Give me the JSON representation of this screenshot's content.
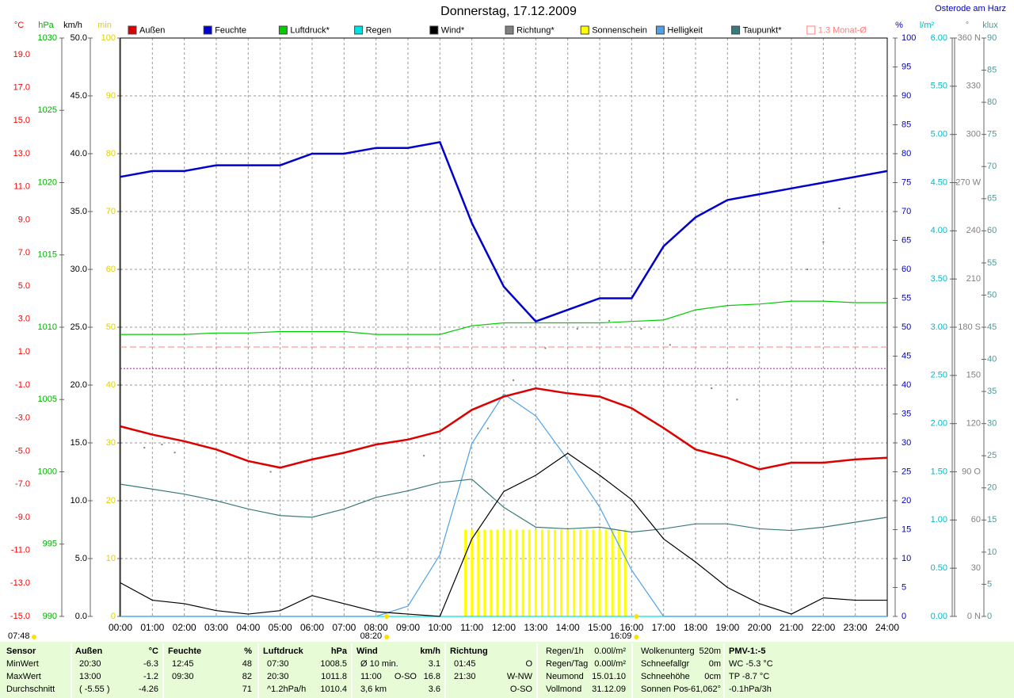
{
  "chart_data": {
    "type": "line",
    "title": "Donnerstag, 17.12.2009",
    "subtitle": "Osterode am Harz",
    "grid": true,
    "xlim": [
      0,
      24
    ],
    "xticks": [
      {
        "value": 0,
        "label": "00:00"
      },
      {
        "value": 1,
        "label": "01:00"
      },
      {
        "value": 2,
        "label": "02:00"
      },
      {
        "value": 3,
        "label": "03:00"
      },
      {
        "value": 4,
        "label": "04:00"
      },
      {
        "value": 5,
        "label": "05:00"
      },
      {
        "value": 6,
        "label": "06:00"
      },
      {
        "value": 7,
        "label": "07:00"
      },
      {
        "value": 8,
        "label": "08:00"
      },
      {
        "value": 9,
        "label": "09:00"
      },
      {
        "value": 10,
        "label": "10:00"
      },
      {
        "value": 11,
        "label": "11:00"
      },
      {
        "value": 12,
        "label": "12:00"
      },
      {
        "value": 13,
        "label": "13:00"
      },
      {
        "value": 14,
        "label": "14:00"
      },
      {
        "value": 15,
        "label": "15:00"
      },
      {
        "value": 16,
        "label": "16:00"
      },
      {
        "value": 17,
        "label": "17:00"
      },
      {
        "value": 18,
        "label": "18:00"
      },
      {
        "value": 19,
        "label": "19:00"
      },
      {
        "value": 20,
        "label": "20:00"
      },
      {
        "value": 21,
        "label": "21:00"
      },
      {
        "value": 22,
        "label": "22:00"
      },
      {
        "value": 23,
        "label": "23:00"
      },
      {
        "value": 24,
        "label": "24:00"
      }
    ],
    "axes": [
      {
        "label": "°C",
        "color": "#ff0000",
        "ylim": [
          -15,
          20
        ],
        "yticks": [
          {
            "value": -15,
            "label": "-15.0"
          },
          {
            "value": -13,
            "label": "-13.0"
          },
          {
            "value": -11,
            "label": "-11.0"
          },
          {
            "value": -9,
            "label": "-9.0"
          },
          {
            "value": -7,
            "label": "-7.0"
          },
          {
            "value": -5,
            "label": "-5.0"
          },
          {
            "value": -3,
            "label": "-3.0"
          },
          {
            "value": -1,
            "label": "-1.0"
          },
          {
            "value": 1,
            "label": "1.0"
          },
          {
            "value": 3,
            "label": "3.0"
          },
          {
            "value": 5,
            "label": "5.0"
          },
          {
            "value": 7,
            "label": "7.0"
          },
          {
            "value": 9,
            "label": "9.0"
          },
          {
            "value": 11,
            "label": "11.0"
          },
          {
            "value": 13,
            "label": "13.0"
          },
          {
            "value": 15,
            "label": "15.0"
          },
          {
            "value": 17,
            "label": "17.0"
          },
          {
            "value": 19,
            "label": "19.0"
          }
        ]
      },
      {
        "label": "hPa",
        "color": "#00b000",
        "ylim": [
          990,
          1030
        ],
        "yticks": [
          990,
          995,
          1000,
          1005,
          1010,
          1015,
          1020,
          1025,
          1030
        ]
      },
      {
        "label": "km/h",
        "color": "#000000",
        "ylim": [
          0,
          50
        ],
        "yticks": [
          {
            "value": 0,
            "label": "0.0"
          },
          {
            "value": 5,
            "label": "5.0"
          },
          {
            "value": 10,
            "label": "10.0"
          },
          {
            "value": 15,
            "label": "15.0"
          },
          {
            "value": 20,
            "label": "20.0"
          },
          {
            "value": 25,
            "label": "25.0"
          },
          {
            "value": 30,
            "label": "30.0"
          },
          {
            "value": 35,
            "label": "35.0"
          },
          {
            "value": 40,
            "label": "40.0"
          },
          {
            "value": 45,
            "label": "45.0"
          },
          {
            "value": 50,
            "label": "50.0"
          }
        ]
      },
      {
        "label": "min",
        "color": "#e0d000",
        "ylim": [
          0,
          100
        ],
        "yticks": [
          0,
          10,
          20,
          30,
          40,
          50,
          60,
          70,
          80,
          90,
          100
        ]
      },
      {
        "label": "%",
        "color": "#0000c0",
        "ylim": [
          0,
          100
        ],
        "yticks": [
          0,
          5,
          10,
          15,
          20,
          25,
          30,
          35,
          40,
          45,
          50,
          55,
          60,
          65,
          70,
          75,
          80,
          85,
          90,
          95,
          100
        ]
      },
      {
        "label": "l/m²",
        "color": "#00b8c8",
        "ylim": [
          0,
          6
        ],
        "yticks": [
          {
            "value": 0,
            "label": "0.00"
          },
          {
            "value": 0.5,
            "label": "0.50"
          },
          {
            "value": 1,
            "label": "1.00"
          },
          {
            "value": 1.5,
            "label": "1.50"
          },
          {
            "value": 2,
            "label": "2.00"
          },
          {
            "value": 2.5,
            "label": "2.50"
          },
          {
            "value": 3,
            "label": "3.00"
          },
          {
            "value": 3.5,
            "label": "3.50"
          },
          {
            "value": 4,
            "label": "4.00"
          },
          {
            "value": 4.5,
            "label": "4.50"
          },
          {
            "value": 5,
            "label": "5.00"
          },
          {
            "value": 5.5,
            "label": "5.50"
          },
          {
            "value": 6,
            "label": "6.00"
          }
        ]
      },
      {
        "label": "°",
        "color": "#808080",
        "ylim": [
          0,
          360
        ],
        "yticks": [
          {
            "value": 0,
            "label": "0 N"
          },
          30,
          60,
          {
            "value": 90,
            "label": "90 O"
          },
          120,
          150,
          {
            "value": 180,
            "label": "180 S"
          },
          210,
          240,
          {
            "value": 270,
            "label": "270 W"
          },
          300,
          330,
          {
            "value": 360,
            "label": "360 N"
          }
        ]
      },
      {
        "label": "klux",
        "color": "#4a9a9a",
        "ylim": [
          0,
          90
        ],
        "yticks": [
          0,
          5,
          10,
          15,
          20,
          25,
          30,
          35,
          40,
          45,
          50,
          55,
          60,
          65,
          70,
          75,
          80,
          85,
          90
        ]
      }
    ],
    "x": [
      0,
      1,
      2,
      3,
      4,
      5,
      6,
      7,
      8,
      9,
      10,
      11,
      12,
      13,
      14,
      15,
      16,
      17,
      18,
      19,
      20,
      21,
      22,
      23,
      24
    ],
    "series": [
      {
        "name": "Außen",
        "color": "#dd0000",
        "axis": 0,
        "values": [
          -3.5,
          -4.0,
          -4.4,
          -4.9,
          -5.6,
          -6.0,
          -5.5,
          -5.1,
          -4.6,
          -4.3,
          -3.8,
          -2.5,
          -1.7,
          -1.2,
          -1.5,
          -1.7,
          -2.4,
          -3.6,
          -4.9,
          -5.4,
          -6.1,
          -5.7,
          -5.7,
          -5.5,
          -5.4
        ]
      },
      {
        "name": "Feuchte",
        "color": "#0000cc",
        "axis": 4,
        "values": [
          76,
          77,
          77,
          78,
          78,
          78,
          80,
          80,
          81,
          81,
          82,
          68,
          57,
          51,
          53,
          55,
          55,
          64,
          69,
          72,
          73,
          74,
          75,
          76,
          77
        ]
      },
      {
        "name": "Luftdruck*",
        "color": "#00cc00",
        "axis": 1,
        "values": [
          1009.5,
          1009.5,
          1009.5,
          1009.6,
          1009.6,
          1009.7,
          1009.7,
          1009.7,
          1009.5,
          1009.5,
          1009.5,
          1010.1,
          1010.3,
          1010.3,
          1010.3,
          1010.3,
          1010.4,
          1010.5,
          1011.2,
          1011.5,
          1011.6,
          1011.8,
          1011.8,
          1011.7,
          1011.7
        ]
      },
      {
        "name": "Regen",
        "color": "#00e0e0",
        "axis": 5,
        "values": [
          0,
          0,
          0,
          0,
          0,
          0,
          0,
          0,
          0,
          0,
          0,
          0,
          0,
          0,
          0,
          0,
          0,
          0,
          0,
          0,
          0,
          0,
          0,
          0,
          0
        ]
      },
      {
        "name": "Wind*",
        "color": "#000000",
        "axis": 2,
        "values": [
          2.9,
          1.4,
          1.1,
          0.5,
          0.2,
          0.5,
          1.8,
          1.1,
          0.4,
          0.2,
          0,
          6.7,
          10.8,
          12.2,
          14.1,
          12.2,
          10.1,
          6.7,
          4.7,
          2.5,
          1.1,
          0.2,
          1.6,
          1.4,
          1.4
        ]
      },
      {
        "name": "Richtung*",
        "color": "#808080",
        "axis": 6,
        "type": "scatter",
        "x": [
          0.75,
          1.3,
          1.7,
          4.7,
          5.7,
          9.5,
          11.5,
          12.3,
          13.3,
          14.3,
          15.3,
          16.3,
          17.2,
          18.5,
          19.3,
          21.5,
          22.0,
          22.5
        ],
        "values": [
          105,
          107,
          102,
          90,
          96,
          100,
          117,
          147,
          167,
          179,
          184,
          179,
          169,
          142,
          135,
          216,
          233,
          254
        ]
      },
      {
        "name": "Sonnenschein",
        "color": "#ffff00",
        "axis": 3,
        "type": "bar",
        "x": [
          10.8,
          11,
          11.2,
          11.4,
          11.6,
          11.8,
          12,
          12.2,
          12.4,
          12.6,
          12.8,
          13,
          13.2,
          13.4,
          13.6,
          13.8,
          14,
          14.2,
          14.4,
          14.6,
          14.8,
          15,
          15.2,
          15.4,
          15.6,
          15.8
        ],
        "values": [
          15,
          15,
          15,
          15,
          15,
          15,
          15,
          15,
          15,
          15,
          15,
          15,
          15,
          15,
          15,
          15,
          15,
          15,
          15,
          15,
          15,
          15,
          15,
          15,
          15,
          15
        ]
      },
      {
        "name": "Helligkeit",
        "color": "#4fa0e8",
        "axis": 7,
        "values": [
          0,
          0,
          0,
          0,
          0,
          0,
          0,
          0,
          0,
          1.6,
          9.6,
          26.9,
          34.6,
          31.2,
          24.4,
          17.0,
          7.2,
          0,
          0,
          0,
          0,
          0,
          0,
          0,
          0
        ]
      },
      {
        "name": "Taupunkt*",
        "color": "#3a7a7a",
        "axis": 0,
        "values": [
          -7.0,
          -7.3,
          -7.6,
          -8.0,
          -8.5,
          -8.9,
          -9.0,
          -8.5,
          -7.8,
          -7.4,
          -6.9,
          -6.7,
          -8.4,
          -9.6,
          -9.7,
          -9.6,
          -9.9,
          -9.7,
          -9.4,
          -9.4,
          -9.7,
          -9.8,
          -9.6,
          -9.3,
          -9.0
        ]
      }
    ],
    "reference_lines": [
      {
        "name": "1.3 Monat-Ø",
        "value": 1.3,
        "axis": 0,
        "color": "#ff8080",
        "style": "dashed"
      },
      {
        "value": 0,
        "axis": 0,
        "color": "#c000c0",
        "style": "dotted"
      }
    ],
    "sun_times": [
      {
        "label": "07:48"
      },
      {
        "label": "08:20",
        "x": 8.333
      },
      {
        "label": "16:09",
        "x": 16.15
      }
    ]
  },
  "stats": [
    {
      "header": [
        "Sensor"
      ],
      "rows": [
        [
          "MinWert"
        ],
        [
          "MaxWert"
        ],
        [
          "Durchschnitt"
        ]
      ]
    },
    {
      "header": [
        "Außen",
        "°C"
      ],
      "rows": [
        [
          "20:30",
          "-6.3"
        ],
        [
          "13:00",
          "-1.2"
        ],
        [
          "( -5.55 )",
          "-4.26"
        ]
      ]
    },
    {
      "header": [
        "Feuchte",
        "%"
      ],
      "rows": [
        [
          "12:45",
          "48"
        ],
        [
          "09:30",
          "82"
        ],
        [
          "71"
        ]
      ]
    },
    {
      "header": [
        "Luftdruck",
        "hPa"
      ],
      "rows": [
        [
          "07:30",
          "1008.5"
        ],
        [
          "20:30",
          "1011.8"
        ],
        [
          "^1.2hPa/h",
          "1010.4"
        ]
      ]
    },
    {
      "header": [
        "Wind",
        "km/h"
      ],
      "rows": [
        [
          "Ø 10 min.",
          "3.1"
        ],
        [
          "11:00",
          "O-SO",
          "16.8"
        ],
        [
          "3,6 km",
          "3.6"
        ]
      ]
    },
    {
      "header": [
        "Richtung"
      ],
      "rows": [
        [
          "01:45",
          "O"
        ],
        [
          "21:30",
          "W-NW"
        ],
        [
          "O-SO"
        ]
      ]
    },
    {
      "rows": [
        [
          "Regen/1h",
          "0.00l/m²"
        ],
        [
          "Regen/Tag",
          "0.00l/m²"
        ],
        [
          "Neumond",
          "15.01.10"
        ],
        [
          "Vollmond",
          "31.12.09"
        ]
      ]
    },
    {
      "rows": [
        [
          "Wolkenunterg",
          "520m"
        ],
        [
          "Schneefallgr",
          "0m"
        ],
        [
          "Schneehöhe",
          "0cm"
        ],
        [
          "Sonnen Pos",
          "-61,062°"
        ]
      ]
    },
    {
      "header": [
        "PMV-1:-5"
      ],
      "rows": [
        [
          "WC -5.3 °C"
        ],
        [
          "TP -8.7 °C"
        ],
        [
          "-0.1hPa/3h"
        ]
      ]
    }
  ]
}
